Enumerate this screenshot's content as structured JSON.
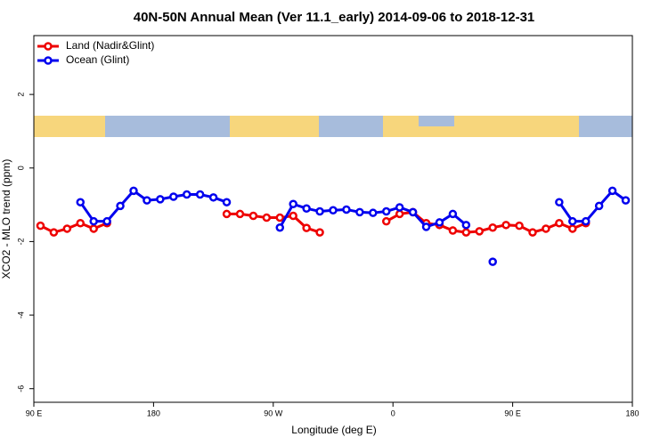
{
  "chart_data": {
    "type": "line",
    "title": "40N-50N Annual Mean (Ver 11.1_early)   2014-09-06 to 2018-12-31",
    "x_label": "Longitude (deg E)",
    "y_label": "XCO2 - MLO trend (ppm)",
    "x": [
      95,
      105,
      115,
      125,
      135,
      145,
      155,
      165,
      175,
      185,
      195,
      205,
      215,
      225,
      235,
      245,
      255,
      265,
      275,
      285,
      295,
      305,
      315,
      325,
      335,
      345,
      355,
      365,
      375,
      385,
      395,
      405,
      415,
      425,
      435,
      445,
      455,
      465,
      475,
      485,
      495,
      505,
      515,
      525,
      535
    ],
    "series": [
      {
        "name": "Land (Nadir&Glint)",
        "color": "#ee0000",
        "values": [
          -1.57,
          -1.75,
          -1.65,
          -1.5,
          -1.65,
          -1.5,
          null,
          null,
          null,
          null,
          null,
          null,
          null,
          null,
          -1.25,
          -1.25,
          -1.3,
          -1.35,
          -1.35,
          -1.3,
          -1.63,
          -1.75,
          null,
          null,
          null,
          null,
          -1.45,
          -1.25,
          -1.2,
          -1.5,
          -1.55,
          -1.7,
          -1.75,
          -1.72,
          -1.62,
          -1.55,
          -1.57,
          -1.75,
          -1.65,
          -1.5,
          -1.65,
          -1.5,
          null,
          null,
          null
        ]
      },
      {
        "name": "Ocean (Glint)",
        "color": "#0000ee",
        "values": [
          null,
          null,
          null,
          -0.93,
          -1.45,
          -1.45,
          -1.03,
          -0.62,
          -0.88,
          -0.85,
          -0.78,
          -0.72,
          -0.72,
          -0.8,
          -0.93,
          null,
          null,
          null,
          -1.62,
          -0.98,
          -1.1,
          -1.18,
          -1.15,
          -1.13,
          -1.2,
          -1.22,
          -1.18,
          -1.07,
          -1.2,
          -1.6,
          -1.48,
          -1.25,
          -1.55,
          null,
          -2.55,
          null,
          null,
          null,
          null,
          -0.93,
          -1.45,
          -1.45,
          -1.03,
          -0.62,
          -0.88
        ]
      }
    ],
    "xlim": [
      90,
      540
    ],
    "xticks": [
      {
        "value": 90,
        "label": "90 E"
      },
      180,
      {
        "value": 270,
        "label": "90 W"
      },
      {
        "value": 360,
        "label": "0"
      },
      {
        "value": 450,
        "label": "90 E"
      },
      {
        "value": 540,
        "label": "180"
      }
    ],
    "ylim": [
      -6.37,
      3.6
    ],
    "yticks": [
      2,
      0,
      -2,
      -4,
      -6
    ],
    "legend": "top-left",
    "grid": false
  }
}
